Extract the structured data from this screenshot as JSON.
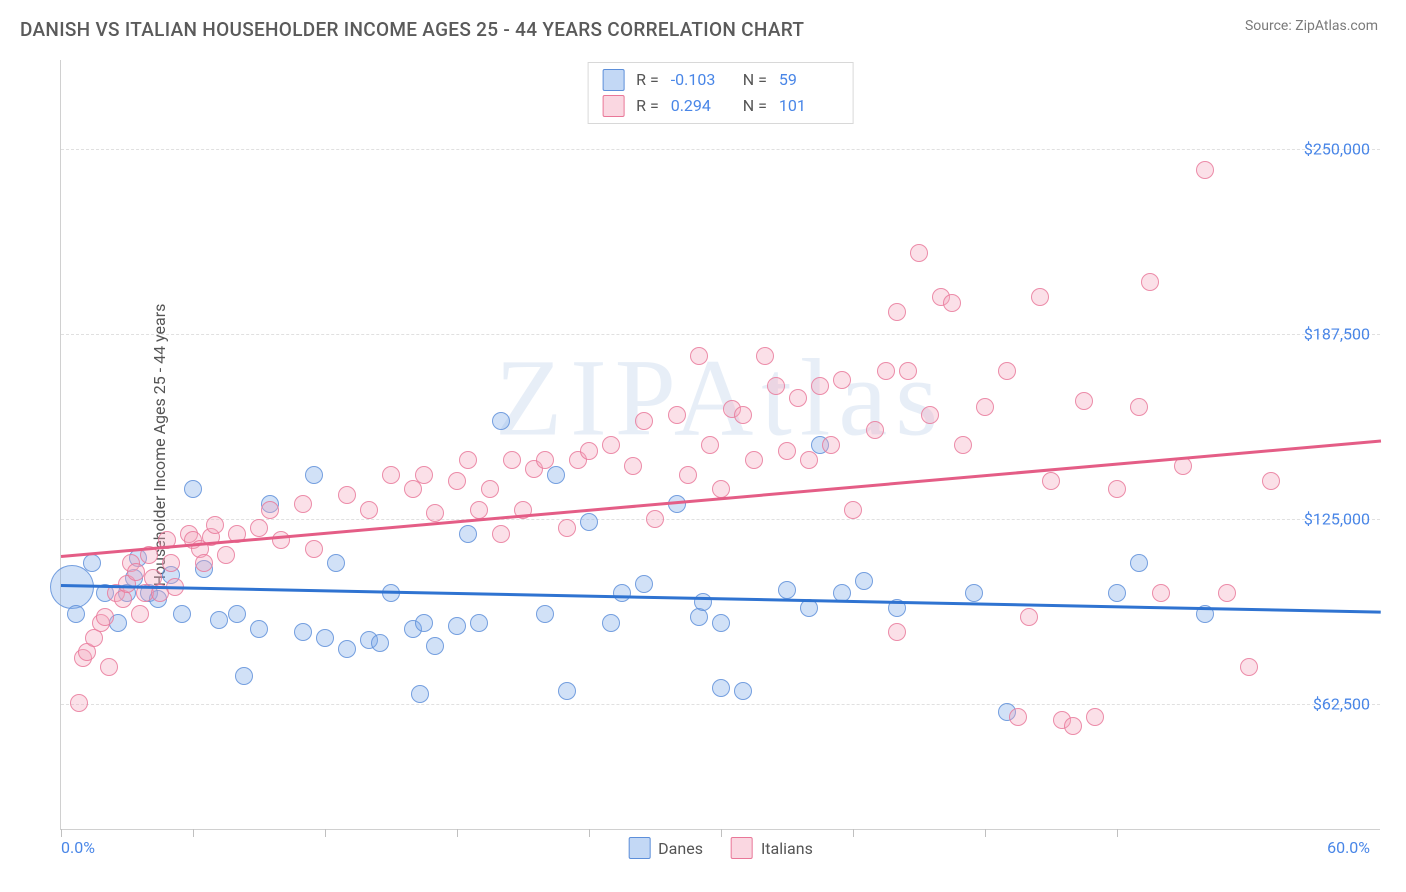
{
  "title": "DANISH VS ITALIAN HOUSEHOLDER INCOME AGES 25 - 44 YEARS CORRELATION CHART",
  "source": "Source: ZipAtlas.com",
  "watermark": "ZIPAtlas",
  "chart": {
    "type": "scatter",
    "background_color": "#ffffff",
    "grid_color": "#e0e0e0",
    "xlim": [
      0,
      60
    ],
    "ylim": [
      20000,
      280000
    ],
    "y_ticks": [
      62500,
      125000,
      187500,
      250000
    ],
    "y_tick_labels": [
      "$62,500",
      "$125,000",
      "$187,500",
      "$250,000"
    ],
    "x_ticks": [
      0,
      6,
      12,
      18,
      24,
      30,
      36,
      42,
      48
    ],
    "x_label_min": "0.0%",
    "x_label_max": "60.0%",
    "y_axis_title": "Householder Income Ages 25 - 44 years",
    "axis_label_color": "#4986e7",
    "axis_title_color": "#555555",
    "point_radius": 9,
    "series": [
      {
        "name": "Danes",
        "color_fill": "rgba(123,169,232,0.35)",
        "color_stroke": "#5d8fda",
        "trend_color": "#2f73d1",
        "R": "-0.103",
        "N": "59",
        "trend": {
          "x1": 0,
          "y1": 103000,
          "x2": 60,
          "y2": 94000
        },
        "points": [
          {
            "x": 0.5,
            "y": 102000,
            "r": 22
          },
          {
            "x": 0.7,
            "y": 93000
          },
          {
            "x": 1.4,
            "y": 110000
          },
          {
            "x": 2.0,
            "y": 100000
          },
          {
            "x": 2.6,
            "y": 90000
          },
          {
            "x": 3.0,
            "y": 100000
          },
          {
            "x": 3.3,
            "y": 105000
          },
          {
            "x": 3.5,
            "y": 112000
          },
          {
            "x": 4.0,
            "y": 100000
          },
          {
            "x": 4.4,
            "y": 98000
          },
          {
            "x": 5.0,
            "y": 106000
          },
          {
            "x": 5.5,
            "y": 93000
          },
          {
            "x": 6.0,
            "y": 135000
          },
          {
            "x": 6.5,
            "y": 108000
          },
          {
            "x": 7.2,
            "y": 91000
          },
          {
            "x": 8.0,
            "y": 93000
          },
          {
            "x": 8.3,
            "y": 72000
          },
          {
            "x": 9.0,
            "y": 88000
          },
          {
            "x": 9.5,
            "y": 130000
          },
          {
            "x": 11.0,
            "y": 87000
          },
          {
            "x": 11.5,
            "y": 140000
          },
          {
            "x": 12.0,
            "y": 85000
          },
          {
            "x": 12.5,
            "y": 110000
          },
          {
            "x": 13.0,
            "y": 81000
          },
          {
            "x": 14.0,
            "y": 84000
          },
          {
            "x": 14.5,
            "y": 83000
          },
          {
            "x": 15.0,
            "y": 100000
          },
          {
            "x": 16.0,
            "y": 88000
          },
          {
            "x": 16.3,
            "y": 66000
          },
          {
            "x": 16.5,
            "y": 90000
          },
          {
            "x": 17.0,
            "y": 82000
          },
          {
            "x": 18.0,
            "y": 89000
          },
          {
            "x": 18.5,
            "y": 120000
          },
          {
            "x": 19.0,
            "y": 90000
          },
          {
            "x": 20.0,
            "y": 158000
          },
          {
            "x": 22.0,
            "y": 93000
          },
          {
            "x": 22.5,
            "y": 140000
          },
          {
            "x": 23.0,
            "y": 67000
          },
          {
            "x": 24.0,
            "y": 124000
          },
          {
            "x": 25.0,
            "y": 90000
          },
          {
            "x": 25.5,
            "y": 100000
          },
          {
            "x": 26.5,
            "y": 103000
          },
          {
            "x": 28.0,
            "y": 130000
          },
          {
            "x": 29.0,
            "y": 92000
          },
          {
            "x": 29.2,
            "y": 97000
          },
          {
            "x": 30.0,
            "y": 90000
          },
          {
            "x": 30.0,
            "y": 68000
          },
          {
            "x": 31.0,
            "y": 67000
          },
          {
            "x": 33.0,
            "y": 101000
          },
          {
            "x": 34.0,
            "y": 95000
          },
          {
            "x": 34.5,
            "y": 150000
          },
          {
            "x": 35.5,
            "y": 100000
          },
          {
            "x": 36.5,
            "y": 104000
          },
          {
            "x": 38.0,
            "y": 95000
          },
          {
            "x": 41.5,
            "y": 100000
          },
          {
            "x": 43.0,
            "y": 60000
          },
          {
            "x": 48.0,
            "y": 100000
          },
          {
            "x": 49.0,
            "y": 110000
          },
          {
            "x": 52.0,
            "y": 93000
          }
        ]
      },
      {
        "name": "Italians",
        "color_fill": "rgba(244,166,188,0.35)",
        "color_stroke": "#e97798",
        "trend_color": "#e45d86",
        "R": "0.294",
        "N": "101",
        "trend": {
          "x1": 0,
          "y1": 113000,
          "x2": 60,
          "y2": 152000
        },
        "points": [
          {
            "x": 0.8,
            "y": 63000
          },
          {
            "x": 1.0,
            "y": 78000
          },
          {
            "x": 1.2,
            "y": 80000
          },
          {
            "x": 1.5,
            "y": 85000
          },
          {
            "x": 1.8,
            "y": 90000
          },
          {
            "x": 2.0,
            "y": 92000
          },
          {
            "x": 2.2,
            "y": 75000
          },
          {
            "x": 2.5,
            "y": 100000
          },
          {
            "x": 2.8,
            "y": 98000
          },
          {
            "x": 3.0,
            "y": 103000
          },
          {
            "x": 3.2,
            "y": 110000
          },
          {
            "x": 3.4,
            "y": 107000
          },
          {
            "x": 3.6,
            "y": 93000
          },
          {
            "x": 3.8,
            "y": 100000
          },
          {
            "x": 4.0,
            "y": 113000
          },
          {
            "x": 4.2,
            "y": 105000
          },
          {
            "x": 4.5,
            "y": 100000
          },
          {
            "x": 4.8,
            "y": 118000
          },
          {
            "x": 5.0,
            "y": 110000
          },
          {
            "x": 5.2,
            "y": 102000
          },
          {
            "x": 5.8,
            "y": 120000
          },
          {
            "x": 6.0,
            "y": 118000
          },
          {
            "x": 6.3,
            "y": 115000
          },
          {
            "x": 6.5,
            "y": 110000
          },
          {
            "x": 6.8,
            "y": 119000
          },
          {
            "x": 7.0,
            "y": 123000
          },
          {
            "x": 7.5,
            "y": 113000
          },
          {
            "x": 8.0,
            "y": 120000
          },
          {
            "x": 9.0,
            "y": 122000
          },
          {
            "x": 9.5,
            "y": 128000
          },
          {
            "x": 10.0,
            "y": 118000
          },
          {
            "x": 11.0,
            "y": 130000
          },
          {
            "x": 11.5,
            "y": 115000
          },
          {
            "x": 13.0,
            "y": 133000
          },
          {
            "x": 14.0,
            "y": 128000
          },
          {
            "x": 15.0,
            "y": 140000
          },
          {
            "x": 16.0,
            "y": 135000
          },
          {
            "x": 16.5,
            "y": 140000
          },
          {
            "x": 17.0,
            "y": 127000
          },
          {
            "x": 18.0,
            "y": 138000
          },
          {
            "x": 18.5,
            "y": 145000
          },
          {
            "x": 19.0,
            "y": 128000
          },
          {
            "x": 19.5,
            "y": 135000
          },
          {
            "x": 20.0,
            "y": 120000
          },
          {
            "x": 20.5,
            "y": 145000
          },
          {
            "x": 21.0,
            "y": 128000
          },
          {
            "x": 21.5,
            "y": 142000
          },
          {
            "x": 22.0,
            "y": 145000
          },
          {
            "x": 23.0,
            "y": 122000
          },
          {
            "x": 23.5,
            "y": 145000
          },
          {
            "x": 24.0,
            "y": 148000
          },
          {
            "x": 25.0,
            "y": 150000
          },
          {
            "x": 26.0,
            "y": 143000
          },
          {
            "x": 26.5,
            "y": 158000
          },
          {
            "x": 27.0,
            "y": 125000
          },
          {
            "x": 28.0,
            "y": 160000
          },
          {
            "x": 28.5,
            "y": 140000
          },
          {
            "x": 29.0,
            "y": 180000
          },
          {
            "x": 29.5,
            "y": 150000
          },
          {
            "x": 30.0,
            "y": 135000
          },
          {
            "x": 30.5,
            "y": 162000
          },
          {
            "x": 31.0,
            "y": 160000
          },
          {
            "x": 31.5,
            "y": 145000
          },
          {
            "x": 32.0,
            "y": 180000
          },
          {
            "x": 32.5,
            "y": 170000
          },
          {
            "x": 33.0,
            "y": 148000
          },
          {
            "x": 33.5,
            "y": 166000
          },
          {
            "x": 34.0,
            "y": 145000
          },
          {
            "x": 34.5,
            "y": 170000
          },
          {
            "x": 35.0,
            "y": 150000
          },
          {
            "x": 35.5,
            "y": 172000
          },
          {
            "x": 36.0,
            "y": 128000
          },
          {
            "x": 37.0,
            "y": 155000
          },
          {
            "x": 37.5,
            "y": 175000
          },
          {
            "x": 38.0,
            "y": 87000
          },
          {
            "x": 38.0,
            "y": 195000
          },
          {
            "x": 38.5,
            "y": 175000
          },
          {
            "x": 39.0,
            "y": 215000
          },
          {
            "x": 39.5,
            "y": 160000
          },
          {
            "x": 40.0,
            "y": 200000
          },
          {
            "x": 40.5,
            "y": 198000
          },
          {
            "x": 41.0,
            "y": 150000
          },
          {
            "x": 42.0,
            "y": 163000
          },
          {
            "x": 43.0,
            "y": 175000
          },
          {
            "x": 43.5,
            "y": 58000
          },
          {
            "x": 44.0,
            "y": 92000
          },
          {
            "x": 44.5,
            "y": 200000
          },
          {
            "x": 45.0,
            "y": 138000
          },
          {
            "x": 45.5,
            "y": 57000
          },
          {
            "x": 46.0,
            "y": 55000
          },
          {
            "x": 46.5,
            "y": 165000
          },
          {
            "x": 47.0,
            "y": 58000
          },
          {
            "x": 48.0,
            "y": 135000
          },
          {
            "x": 49.0,
            "y": 163000
          },
          {
            "x": 49.5,
            "y": 205000
          },
          {
            "x": 50.0,
            "y": 100000
          },
          {
            "x": 51.0,
            "y": 143000
          },
          {
            "x": 52.0,
            "y": 243000
          },
          {
            "x": 53.0,
            "y": 100000
          },
          {
            "x": 54.0,
            "y": 75000
          },
          {
            "x": 55.0,
            "y": 138000
          }
        ]
      }
    ]
  },
  "legend_top": {
    "R_label": "R =",
    "N_label": "N ="
  },
  "legend_bottom": {
    "items": [
      "Danes",
      "Italians"
    ]
  }
}
